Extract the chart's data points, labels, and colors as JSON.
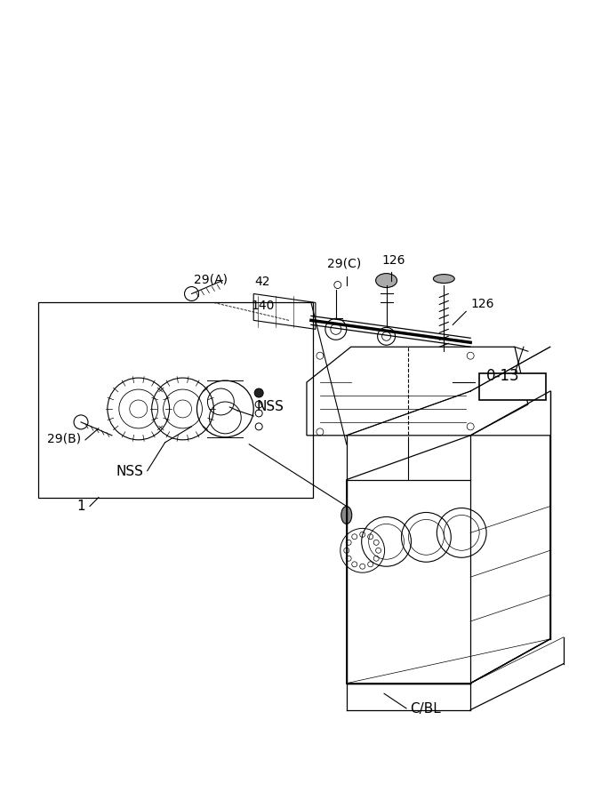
{
  "bg_color": "#ffffff",
  "line_color": "#000000",
  "fig_width": 6.67,
  "fig_height": 9.0,
  "dpi": 100,
  "labels": {
    "CoverBL": "C/BL",
    "label1": "1",
    "NSS1": "NSS",
    "NSS2": "NSS",
    "label29B": "29(B)",
    "label29A": "29(A)",
    "label29C": "29(C)",
    "label140": "140",
    "label42": "42",
    "label126a": "126",
    "label126b": "126",
    "label013": "0-13"
  }
}
